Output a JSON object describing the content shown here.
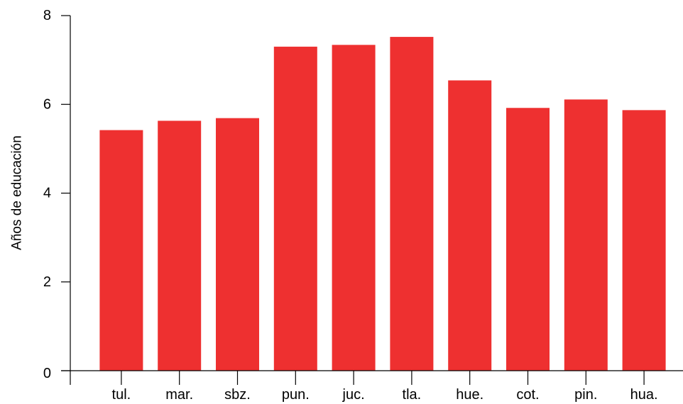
{
  "chart_data": {
    "type": "bar",
    "title": "",
    "xlabel": "",
    "ylabel": "Años de educación",
    "categories": [
      "tul.",
      "mar.",
      "sbz.",
      "pun.",
      "juc.",
      "tla.",
      "hue.",
      "cot.",
      "pin.",
      "hua."
    ],
    "values": [
      5.42,
      5.63,
      5.69,
      7.3,
      7.34,
      7.52,
      6.54,
      5.92,
      6.11,
      5.87
    ],
    "ylim": [
      0,
      8
    ],
    "yticks": [
      "0",
      "2",
      "4",
      "6",
      "8"
    ],
    "grid": false,
    "legend": "none",
    "bar_color": "#ee3030"
  }
}
